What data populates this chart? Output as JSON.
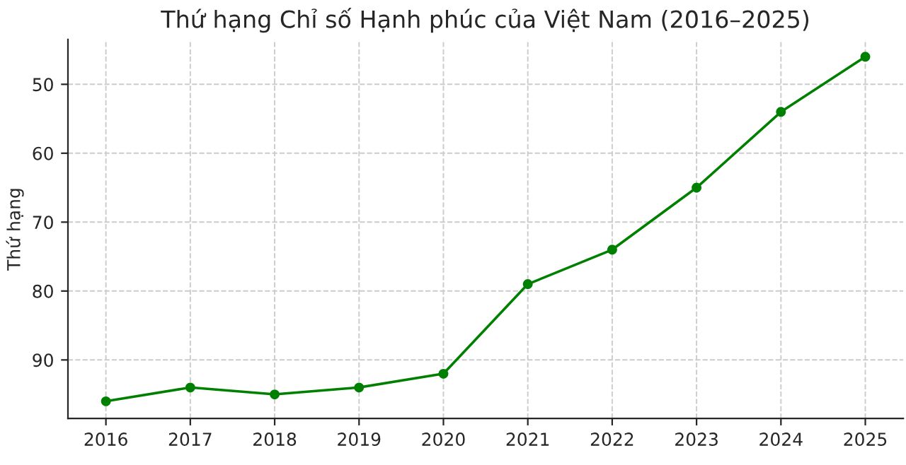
{
  "chart_data": {
    "type": "line",
    "title": "Thứ hạng Chỉ số Hạnh phúc của Việt Nam (2016–2025)",
    "ylabel": "Thứ hạng",
    "x": [
      2016,
      2017,
      2018,
      2019,
      2020,
      2021,
      2022,
      2023,
      2024,
      2025
    ],
    "series": [
      {
        "color": "#008000",
        "values": [
          96,
          94,
          95,
          94,
          92,
          79,
          74,
          65,
          54,
          46
        ]
      }
    ],
    "xlim": [
      2015.55,
      2025.45
    ],
    "xticks": [
      2016,
      2017,
      2018,
      2019,
      2020,
      2021,
      2022,
      2023,
      2024,
      2025
    ],
    "ylim": [
      98.5,
      43.5
    ],
    "yticks": [
      50,
      60,
      70,
      80,
      90
    ],
    "grid": true,
    "marker": "circle",
    "line_style": "solid",
    "legend": false
  }
}
